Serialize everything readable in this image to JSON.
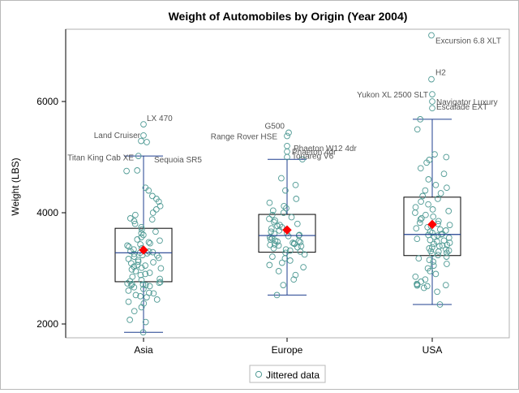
{
  "chart_data": {
    "type": "box",
    "title": "Weight of Automobiles by Origin (Year 2004)",
    "xlabel": "",
    "ylabel": "Weight (LBS)",
    "ylim": [
      1700,
      7350
    ],
    "yticks": [
      2000,
      4000,
      6000
    ],
    "categories": [
      "Asia",
      "Europe",
      "USA"
    ],
    "grid": false,
    "legend_position": "bottom-center",
    "legend_label": "Jittered data",
    "colors": {
      "points": "#4f9a94",
      "whisker": "#1f3f8f",
      "median": "#1f3f8f",
      "box": "#000000",
      "mean": "#ff0000",
      "annotation": "#555555"
    },
    "boxes": [
      {
        "category": "Asia",
        "min": 1850,
        "q1": 2760,
        "median": 3280,
        "q3": 3720,
        "max": 5020,
        "mean": 3330
      },
      {
        "category": "Europe",
        "min": 2520,
        "q1": 3290,
        "median": 3590,
        "q3": 3970,
        "max": 4960,
        "mean": 3690
      },
      {
        "category": "USA",
        "min": 2350,
        "q1": 3230,
        "median": 3610,
        "q3": 4280,
        "max": 5680,
        "mean": 3790
      }
    ],
    "outliers": [
      {
        "category": "Asia",
        "label": "LX 470",
        "value": 5590
      },
      {
        "category": "Asia",
        "label": "Land Cruiser",
        "value": 5390
      },
      {
        "category": "Asia",
        "label": "Titan King Cab XE",
        "value": 5290
      },
      {
        "category": "Asia",
        "label": "Sequoia SR5",
        "value": 5270
      },
      {
        "category": "Europe",
        "label": "G500",
        "value": 5440
      },
      {
        "category": "Europe",
        "label": "Range Rover HSE",
        "value": 5380
      },
      {
        "category": "Europe",
        "label": "Phaeton W12 4dr",
        "value": 5200
      },
      {
        "category": "Europe",
        "label": "Phaeton 4dr",
        "value": 5100
      },
      {
        "category": "Europe",
        "label": "Touareg V6",
        "value": 5000
      },
      {
        "category": "USA",
        "label": "Excursion 6.8 XLT",
        "value": 7190
      },
      {
        "category": "USA",
        "label": "H2",
        "value": 6400
      },
      {
        "category": "USA",
        "label": "Yukon XL 2500 SLT",
        "value": 6130
      },
      {
        "category": "USA",
        "label": "Navigator Luxury",
        "value": 6000
      },
      {
        "category": "USA",
        "label": "Escalade EXT",
        "value": 5880
      }
    ],
    "points": [
      {
        "category": "Asia",
        "values": [
          1850,
          2035,
          2075,
          2230,
          2300,
          2370,
          2400,
          2440,
          2480,
          2500,
          2520,
          2550,
          2560,
          2600,
          2630,
          2660,
          2680,
          2700,
          2700,
          2710,
          2720,
          2730,
          2740,
          2755,
          2770,
          2790,
          2810,
          2850,
          2880,
          2900,
          2920,
          2950,
          2980,
          3000,
          3010,
          3030,
          3050,
          3060,
          3090,
          3110,
          3120,
          3150,
          3170,
          3190,
          3210,
          3230,
          3240,
          3260,
          3270,
          3280,
          3290,
          3300,
          3310,
          3340,
          3360,
          3390,
          3410,
          3430,
          3450,
          3470,
          3500,
          3520,
          3560,
          3600,
          3630,
          3660,
          3700,
          3740,
          3800,
          3850,
          3880,
          3900,
          3960,
          4000,
          4060,
          4120,
          4200,
          4250,
          4300,
          4400,
          4450,
          4750,
          4760,
          5020
        ]
      },
      {
        "category": "Europe",
        "values": [
          2520,
          2700,
          2800,
          2880,
          2950,
          3020,
          3060,
          3100,
          3140,
          3180,
          3210,
          3250,
          3280,
          3300,
          3320,
          3340,
          3360,
          3380,
          3400,
          3410,
          3420,
          3430,
          3440,
          3450,
          3460,
          3470,
          3480,
          3490,
          3500,
          3520,
          3540,
          3560,
          3580,
          3590,
          3600,
          3620,
          3640,
          3660,
          3680,
          3700,
          3720,
          3740,
          3760,
          3780,
          3800,
          3830,
          3860,
          3890,
          3920,
          3960,
          4000,
          4040,
          4080,
          4120,
          4180,
          4250,
          4400,
          4500,
          4620,
          4960
        ]
      },
      {
        "category": "USA",
        "values": [
          2350,
          2580,
          2650,
          2680,
          2690,
          2700,
          2710,
          2720,
          2760,
          2800,
          2850,
          2900,
          2950,
          3000,
          3050,
          3080,
          3120,
          3150,
          3180,
          3210,
          3240,
          3260,
          3280,
          3300,
          3310,
          3320,
          3340,
          3360,
          3380,
          3400,
          3410,
          3420,
          3440,
          3460,
          3480,
          3500,
          3510,
          3530,
          3550,
          3570,
          3590,
          3600,
          3610,
          3620,
          3640,
          3660,
          3680,
          3700,
          3720,
          3740,
          3760,
          3780,
          3800,
          3820,
          3850,
          3880,
          3900,
          3930,
          3960,
          4000,
          4030,
          4060,
          4100,
          4150,
          4200,
          4250,
          4300,
          4350,
          4400,
          4450,
          4500,
          4600,
          4700,
          4800,
          4900,
          4950,
          5000,
          5050,
          5500,
          5680
        ]
      }
    ]
  }
}
